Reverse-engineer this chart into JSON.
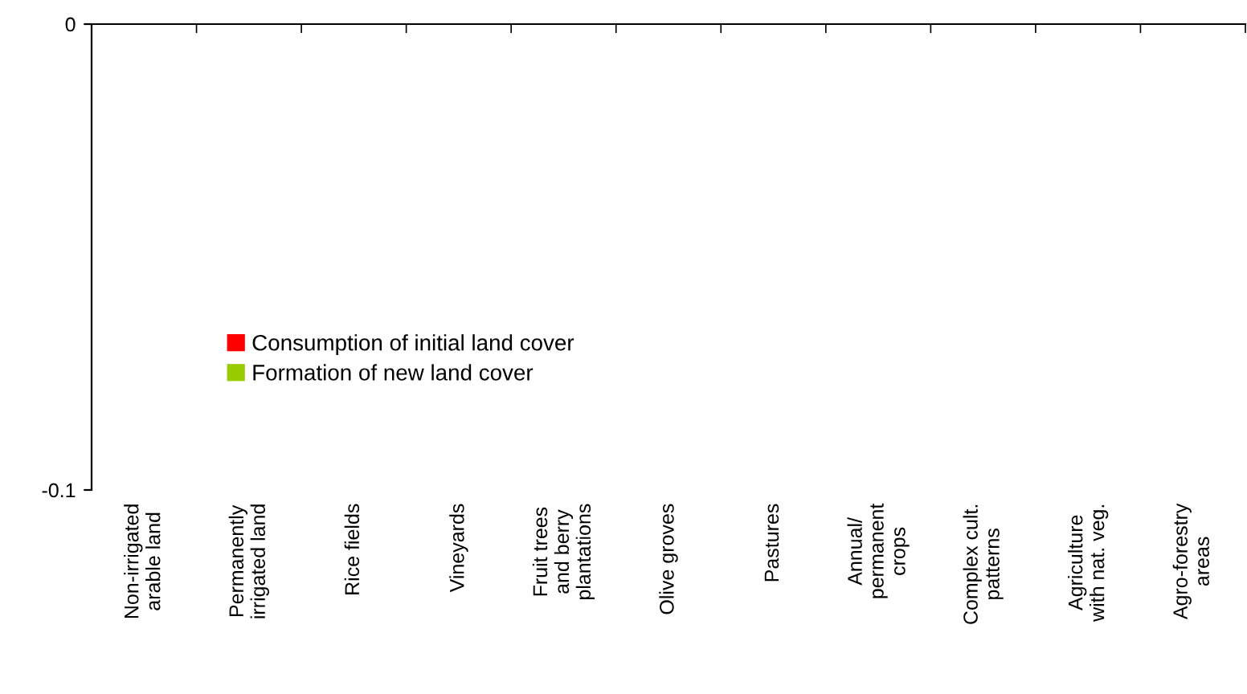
{
  "chart_data": {
    "type": "bar",
    "categories": [
      "Non-irrigated\narable land",
      "Permanently\nirrigated land",
      "Rice fields",
      "Vineyards",
      "Fruit trees\nand berry\nplantations",
      "Olive groves",
      "Pastures",
      "Annual/\npermanent\ncrops",
      "Complex cult.\npatterns",
      "Agriculture\nwith nat. veg.",
      "Agro-forestry\nareas"
    ],
    "series": [
      {
        "name": "Consumption of initial land cover",
        "color": "#ff0000",
        "values": [
          0,
          0,
          0,
          0,
          0,
          0,
          0,
          0,
          0,
          0,
          0
        ]
      },
      {
        "name": "Formation of new land cover",
        "color": "#99cc00",
        "values": [
          0,
          0,
          0,
          0,
          0,
          0,
          0,
          0,
          0,
          0,
          0
        ]
      }
    ],
    "ylim": [
      -0.1,
      0
    ],
    "yticks": [
      0,
      -0.1
    ],
    "grid": false,
    "legend": "left"
  }
}
